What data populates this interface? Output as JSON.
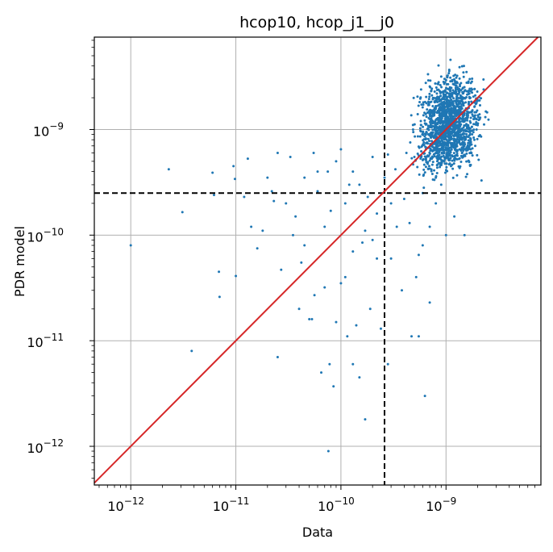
{
  "chart_data": {
    "type": "scatter",
    "title": "hcop10, hcop_j1__j0",
    "xlabel": "Data",
    "ylabel": "PDR model",
    "xscale": "log",
    "yscale": "log",
    "xlim": [
      4.5e-13,
      8e-09
    ],
    "ylim": [
      4.3e-13,
      7.5e-09
    ],
    "grid": true,
    "x_ticks": [
      {
        "value": 1e-12,
        "mantissa": "10",
        "exp": "−12"
      },
      {
        "value": 1e-11,
        "mantissa": "10",
        "exp": "−11"
      },
      {
        "value": 1e-10,
        "mantissa": "10",
        "exp": "−10"
      },
      {
        "value": 1e-09,
        "mantissa": "10",
        "exp": "−9"
      }
    ],
    "y_ticks": [
      {
        "value": 1e-12,
        "mantissa": "10",
        "exp": "−12"
      },
      {
        "value": 1e-11,
        "mantissa": "10",
        "exp": "−11"
      },
      {
        "value": 1e-10,
        "mantissa": "10",
        "exp": "−10"
      },
      {
        "value": 1e-09,
        "mantissa": "10",
        "exp": "−9"
      }
    ],
    "threshold_x": 2.6e-10,
    "threshold_y": 2.5e-10,
    "identity_line": true,
    "point_color": "#1f77b4",
    "line_color": "#d62728",
    "cluster": {
      "x_range": [
        4e-10,
        2.8e-09
      ],
      "y_range": [
        2.5e-10,
        5e-09
      ],
      "count": 1600
    },
    "points": [
      [
        1e-12,
        8e-11
      ],
      [
        2.3e-12,
        4.2e-10
      ],
      [
        3.1e-12,
        1.65e-10
      ],
      [
        3.8e-12,
        8e-12
      ],
      [
        6e-12,
        3.9e-10
      ],
      [
        6.9e-12,
        4.5e-11
      ],
      [
        7e-12,
        2.6e-11
      ],
      [
        6.2e-12,
        2.4e-10
      ],
      [
        9.5e-12,
        4.5e-10
      ],
      [
        1e-11,
        4.1e-11
      ],
      [
        9.8e-12,
        3.4e-10
      ],
      [
        1.3e-11,
        5.3e-10
      ],
      [
        1.4e-11,
        1.2e-10
      ],
      [
        1.6e-11,
        7.5e-11
      ],
      [
        1.8e-11,
        1.1e-10
      ],
      [
        2e-11,
        3.5e-10
      ],
      [
        2.2e-11,
        2.6e-10
      ],
      [
        2.5e-11,
        6e-10
      ],
      [
        2.5e-11,
        7e-12
      ],
      [
        2.7e-11,
        4.7e-11
      ],
      [
        3e-11,
        2e-10
      ],
      [
        3.3e-11,
        5.5e-10
      ],
      [
        3.7e-11,
        1.5e-10
      ],
      [
        4e-11,
        2e-11
      ],
      [
        4.2e-11,
        5.5e-11
      ],
      [
        4.5e-11,
        3.5e-10
      ],
      [
        5e-11,
        1.6e-11
      ],
      [
        5.3e-11,
        1.6e-11
      ],
      [
        5.6e-11,
        2.7e-11
      ],
      [
        6e-11,
        4e-10
      ],
      [
        6.5e-11,
        5e-12
      ],
      [
        7e-11,
        3.2e-11
      ],
      [
        7.6e-11,
        9e-13
      ],
      [
        7.8e-11,
        6e-12
      ],
      [
        8.5e-11,
        3.7e-12
      ],
      [
        9e-11,
        1.5e-11
      ],
      [
        1e-10,
        6.5e-10
      ],
      [
        1.1e-10,
        4e-11
      ],
      [
        1.15e-10,
        1.1e-11
      ],
      [
        1.2e-10,
        3e-10
      ],
      [
        1.3e-10,
        6e-12
      ],
      [
        1.4e-10,
        1.4e-11
      ],
      [
        1.5e-10,
        4.5e-12
      ],
      [
        1.6e-10,
        8.5e-11
      ],
      [
        1.7e-10,
        1.8e-12
      ],
      [
        1.9e-10,
        2e-11
      ],
      [
        2e-10,
        5.5e-10
      ],
      [
        2.2e-10,
        6e-11
      ],
      [
        2.4e-10,
        1.3e-11
      ],
      [
        2.8e-10,
        6e-12
      ],
      [
        3e-10,
        2e-10
      ],
      [
        3.4e-10,
        1.2e-10
      ],
      [
        3.8e-10,
        3e-11
      ],
      [
        4.2e-10,
        6e-10
      ],
      [
        4.7e-10,
        1.1e-11
      ],
      [
        5.2e-10,
        4e-11
      ],
      [
        5.5e-10,
        1.1e-11
      ],
      [
        6e-10,
        8e-11
      ],
      [
        6.3e-10,
        3e-12
      ],
      [
        7e-10,
        1.2e-10
      ],
      [
        8e-10,
        2e-10
      ],
      [
        9e-10,
        3e-10
      ],
      [
        1e-09,
        1e-10
      ],
      [
        1.2e-09,
        1.5e-10
      ],
      [
        1.5e-09,
        1e-10
      ],
      [
        1.1e-10,
        2e-10
      ],
      [
        1.5e-10,
        3e-10
      ],
      [
        8e-11,
        1.7e-10
      ],
      [
        6e-11,
        2.6e-10
      ],
      [
        4.5e-11,
        8e-11
      ],
      [
        3.5e-11,
        1e-10
      ],
      [
        1.8e-10,
        2.3e-10
      ],
      [
        2.6e-10,
        3.5e-10
      ],
      [
        3.3e-10,
        4.2e-10
      ],
      [
        5e-10,
        5.5e-10
      ],
      [
        1.3e-10,
        4e-10
      ],
      [
        9e-11,
        5e-10
      ],
      [
        7e-11,
        1.2e-10
      ],
      [
        2.2e-10,
        1.6e-10
      ],
      [
        4e-10,
        2.2e-10
      ],
      [
        1.7e-10,
        1.1e-10
      ],
      [
        6e-10,
        2.5e-10
      ],
      [
        8e-10,
        3.5e-10
      ],
      [
        2.3e-11,
        2.1e-10
      ],
      [
        1.2e-11,
        2.3e-10
      ],
      [
        5.5e-11,
        6e-10
      ],
      [
        7.5e-11,
        4e-10
      ],
      [
        2.8e-10,
        5.8e-10
      ],
      [
        1e-10,
        3.5e-11
      ],
      [
        1.3e-10,
        7e-11
      ],
      [
        2e-10,
        9e-11
      ],
      [
        3e-10,
        6e-11
      ],
      [
        4.5e-10,
        1.3e-10
      ],
      [
        5.5e-10,
        6.5e-11
      ],
      [
        7e-10,
        2.3e-11
      ]
    ]
  }
}
